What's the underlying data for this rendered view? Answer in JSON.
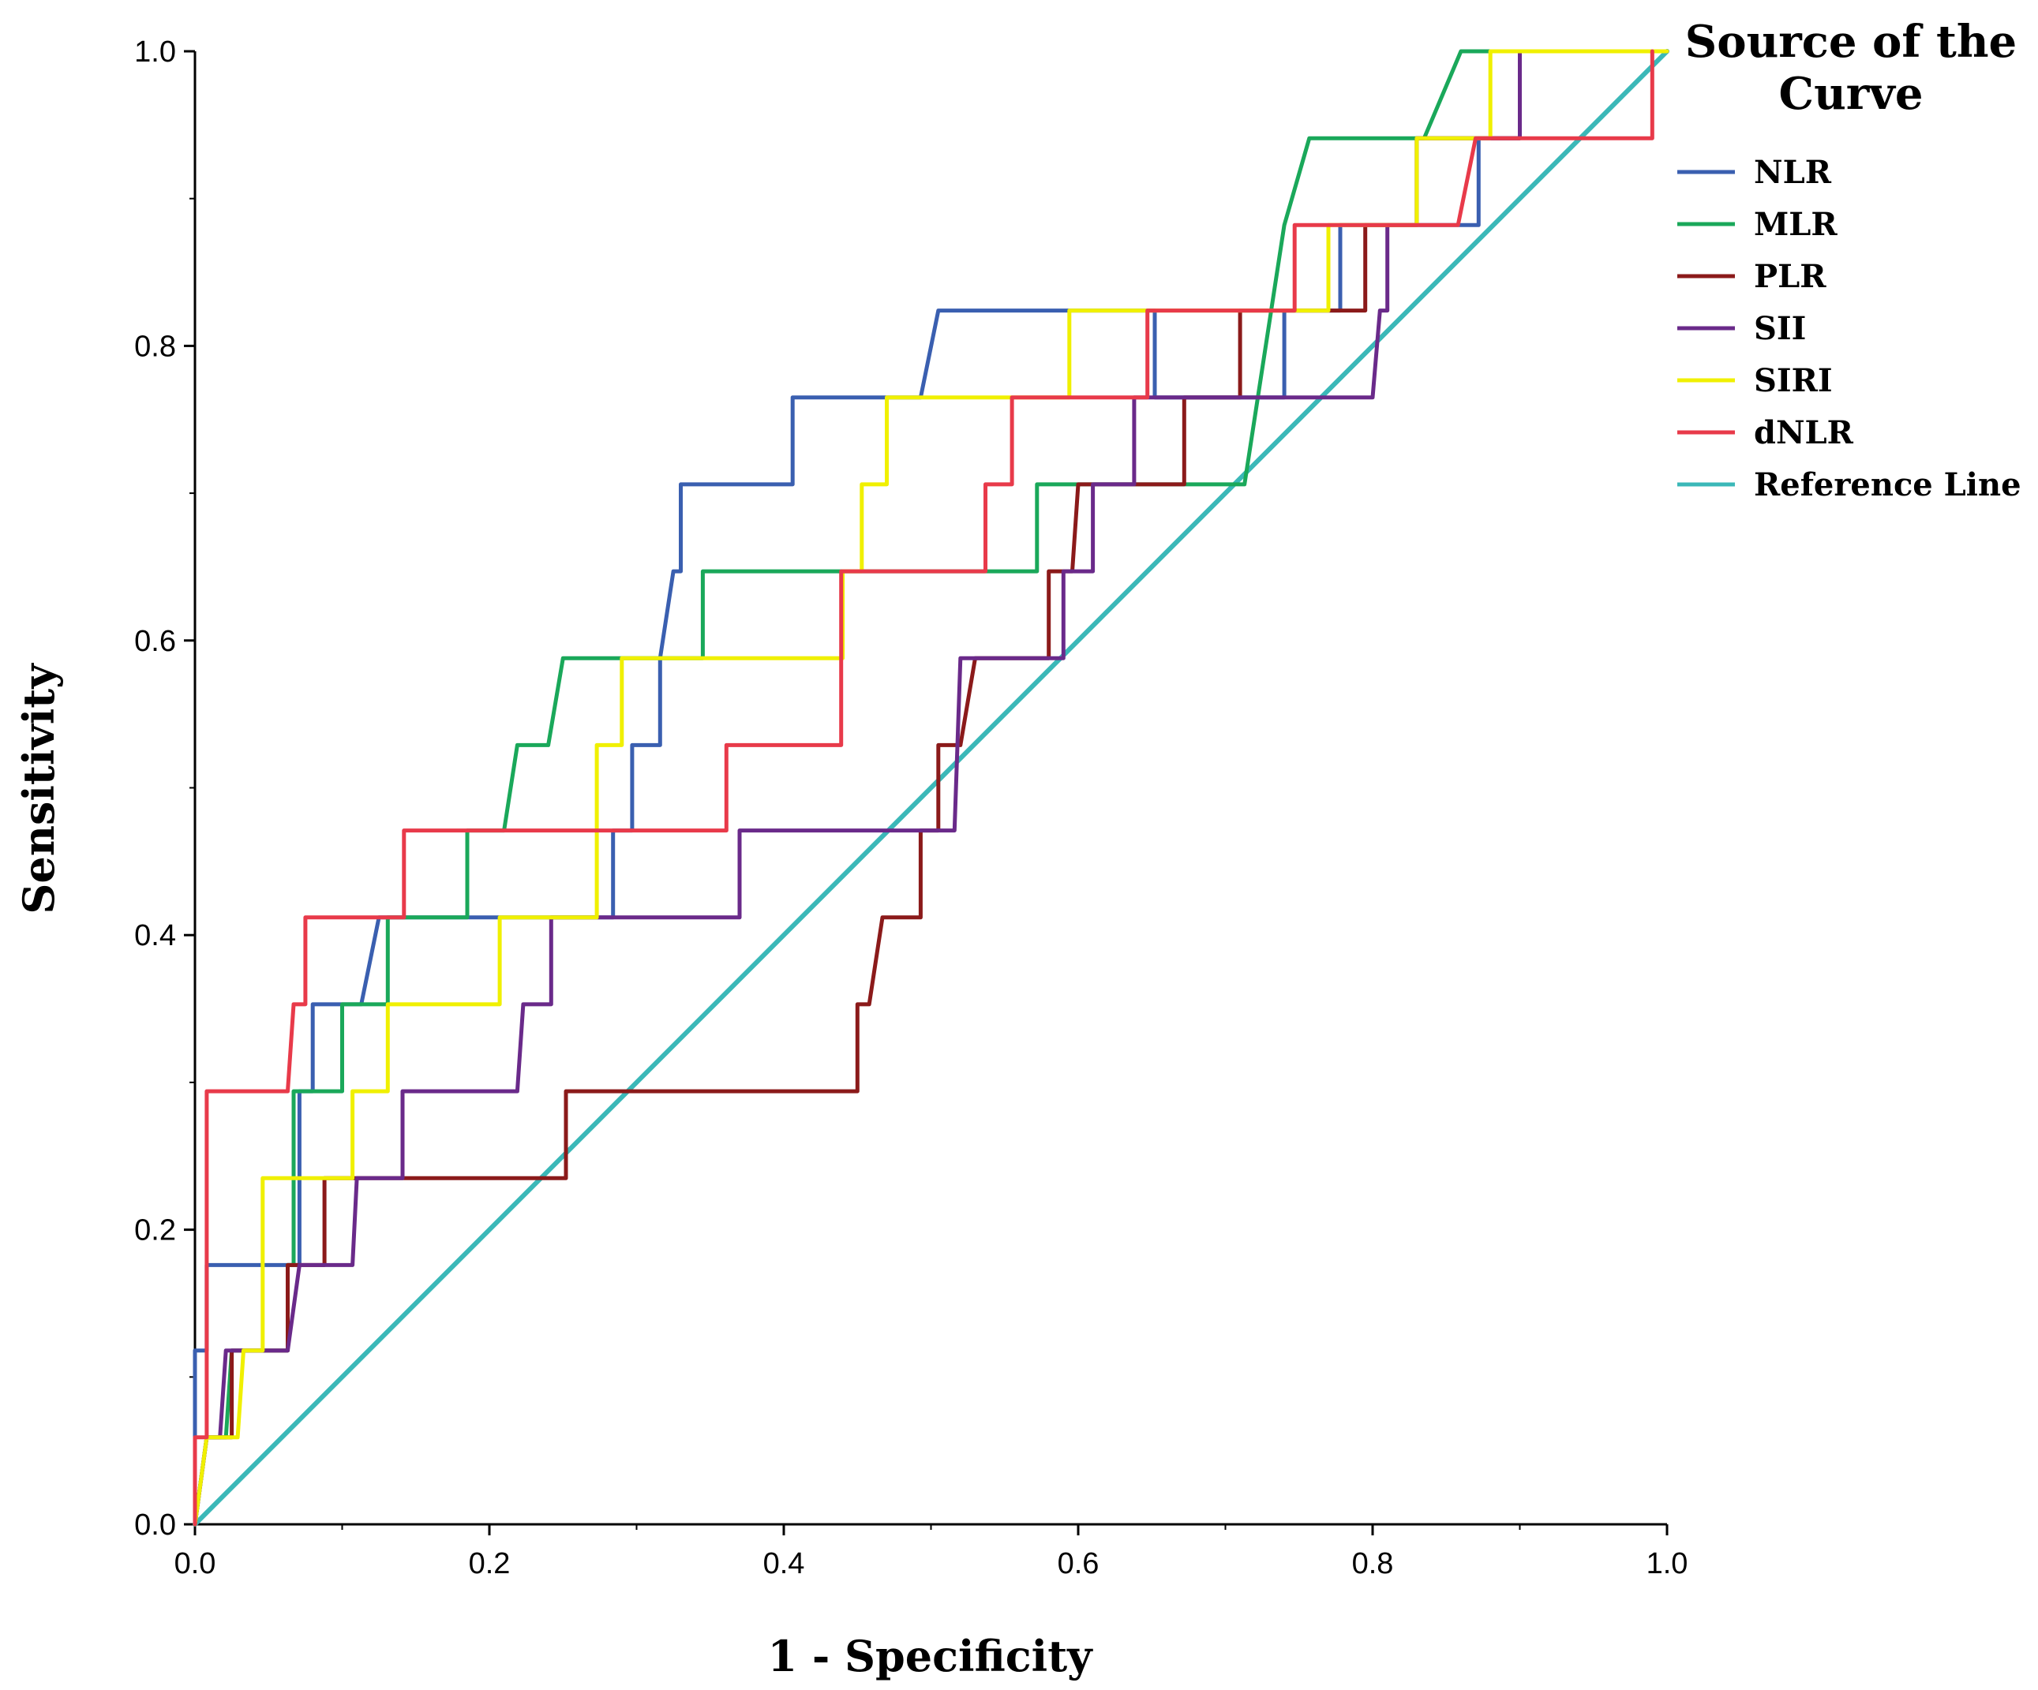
{
  "chart_data": {
    "type": "line",
    "title": "",
    "xlabel": "1 - Specificity",
    "ylabel": "Sensitivity",
    "xlim": [
      0,
      1
    ],
    "ylim": [
      0,
      1
    ],
    "x_ticks": [
      "0.0",
      "0.2",
      "0.4",
      "0.6",
      "0.8",
      "1.0"
    ],
    "y_ticks": [
      "0.0",
      "0.2",
      "0.4",
      "0.6",
      "0.8",
      "1.0"
    ],
    "legend_title": "Source of the Curve",
    "legend_title_lines": [
      "Source of the",
      "Curve"
    ],
    "legend_position": "top-right, outside plot",
    "series": [
      {
        "name": "NLR",
        "color": "#3a5fb0",
        "points": [
          [
            0,
            0
          ],
          [
            0,
            0.118
          ],
          [
            0.008,
            0.118
          ],
          [
            0.008,
            0.176
          ],
          [
            0.071,
            0.176
          ],
          [
            0.071,
            0.294
          ],
          [
            0.08,
            0.294
          ],
          [
            0.08,
            0.353
          ],
          [
            0.113,
            0.353
          ],
          [
            0.125,
            0.412
          ],
          [
            0.284,
            0.412
          ],
          [
            0.284,
            0.471
          ],
          [
            0.297,
            0.471
          ],
          [
            0.297,
            0.529
          ],
          [
            0.316,
            0.529
          ],
          [
            0.316,
            0.588
          ],
          [
            0.325,
            0.647
          ],
          [
            0.33,
            0.647
          ],
          [
            0.33,
            0.706
          ],
          [
            0.406,
            0.706
          ],
          [
            0.406,
            0.765
          ],
          [
            0.493,
            0.765
          ],
          [
            0.505,
            0.824
          ],
          [
            0.652,
            0.824
          ],
          [
            0.652,
            0.765
          ],
          [
            0.74,
            0.765
          ],
          [
            0.74,
            0.824
          ],
          [
            0.778,
            0.824
          ],
          [
            0.778,
            0.882
          ],
          [
            0.872,
            0.882
          ],
          [
            0.872,
            0.941
          ],
          [
            0.9,
            0.941
          ],
          [
            0.9,
            1
          ],
          [
            1,
            1
          ]
        ]
      },
      {
        "name": "MLR",
        "color": "#1aa85a",
        "points": [
          [
            0,
            0
          ],
          [
            0.008,
            0.059
          ],
          [
            0.021,
            0.059
          ],
          [
            0.025,
            0.118
          ],
          [
            0.063,
            0.118
          ],
          [
            0.063,
            0.176
          ],
          [
            0.067,
            0.176
          ],
          [
            0.067,
            0.294
          ],
          [
            0.1,
            0.294
          ],
          [
            0.1,
            0.353
          ],
          [
            0.131,
            0.353
          ],
          [
            0.131,
            0.412
          ],
          [
            0.185,
            0.412
          ],
          [
            0.185,
            0.471
          ],
          [
            0.21,
            0.471
          ],
          [
            0.219,
            0.529
          ],
          [
            0.24,
            0.529
          ],
          [
            0.25,
            0.588
          ],
          [
            0.345,
            0.588
          ],
          [
            0.345,
            0.647
          ],
          [
            0.572,
            0.647
          ],
          [
            0.572,
            0.706
          ],
          [
            0.713,
            0.706
          ],
          [
            0.74,
            0.882
          ],
          [
            0.757,
            0.941
          ],
          [
            0.835,
            0.941
          ],
          [
            0.86,
            1
          ],
          [
            1,
            1
          ]
        ]
      },
      {
        "name": "PLR",
        "color": "#8b1a1a",
        "points": [
          [
            0,
            0
          ],
          [
            0.008,
            0.059
          ],
          [
            0.025,
            0.059
          ],
          [
            0.025,
            0.118
          ],
          [
            0.063,
            0.118
          ],
          [
            0.063,
            0.176
          ],
          [
            0.088,
            0.176
          ],
          [
            0.088,
            0.235
          ],
          [
            0.252,
            0.235
          ],
          [
            0.252,
            0.294
          ],
          [
            0.45,
            0.294
          ],
          [
            0.45,
            0.353
          ],
          [
            0.458,
            0.353
          ],
          [
            0.467,
            0.412
          ],
          [
            0.493,
            0.412
          ],
          [
            0.493,
            0.471
          ],
          [
            0.505,
            0.471
          ],
          [
            0.505,
            0.529
          ],
          [
            0.52,
            0.529
          ],
          [
            0.53,
            0.588
          ],
          [
            0.58,
            0.588
          ],
          [
            0.58,
            0.647
          ],
          [
            0.596,
            0.647
          ],
          [
            0.6,
            0.706
          ],
          [
            0.672,
            0.706
          ],
          [
            0.672,
            0.765
          ],
          [
            0.71,
            0.765
          ],
          [
            0.71,
            0.824
          ],
          [
            0.795,
            0.824
          ],
          [
            0.795,
            0.882
          ],
          [
            0.83,
            0.882
          ],
          [
            0.83,
            0.941
          ],
          [
            0.9,
            0.941
          ],
          [
            0.9,
            1
          ],
          [
            1,
            1
          ]
        ]
      },
      {
        "name": "SII",
        "color": "#6a2a8a",
        "points": [
          [
            0,
            0
          ],
          [
            0.008,
            0.059
          ],
          [
            0.017,
            0.059
          ],
          [
            0.021,
            0.118
          ],
          [
            0.063,
            0.118
          ],
          [
            0.071,
            0.176
          ],
          [
            0.107,
            0.176
          ],
          [
            0.11,
            0.235
          ],
          [
            0.141,
            0.235
          ],
          [
            0.141,
            0.294
          ],
          [
            0.219,
            0.294
          ],
          [
            0.223,
            0.353
          ],
          [
            0.242,
            0.353
          ],
          [
            0.242,
            0.412
          ],
          [
            0.37,
            0.412
          ],
          [
            0.37,
            0.471
          ],
          [
            0.516,
            0.471
          ],
          [
            0.52,
            0.588
          ],
          [
            0.59,
            0.588
          ],
          [
            0.59,
            0.647
          ],
          [
            0.61,
            0.647
          ],
          [
            0.61,
            0.706
          ],
          [
            0.638,
            0.706
          ],
          [
            0.638,
            0.765
          ],
          [
            0.8,
            0.765
          ],
          [
            0.805,
            0.824
          ],
          [
            0.81,
            0.824
          ],
          [
            0.81,
            0.882
          ],
          [
            0.83,
            0.882
          ],
          [
            0.83,
            0.941
          ],
          [
            0.9,
            0.941
          ],
          [
            0.9,
            1
          ],
          [
            1,
            1
          ]
        ]
      },
      {
        "name": "SIRI",
        "color": "#f0f000",
        "points": [
          [
            0,
            0
          ],
          [
            0.008,
            0.059
          ],
          [
            0.029,
            0.059
          ],
          [
            0.033,
            0.118
          ],
          [
            0.046,
            0.118
          ],
          [
            0.046,
            0.235
          ],
          [
            0.107,
            0.235
          ],
          [
            0.107,
            0.294
          ],
          [
            0.131,
            0.294
          ],
          [
            0.131,
            0.353
          ],
          [
            0.207,
            0.353
          ],
          [
            0.207,
            0.412
          ],
          [
            0.273,
            0.412
          ],
          [
            0.273,
            0.529
          ],
          [
            0.29,
            0.529
          ],
          [
            0.29,
            0.588
          ],
          [
            0.44,
            0.588
          ],
          [
            0.44,
            0.647
          ],
          [
            0.453,
            0.647
          ],
          [
            0.453,
            0.706
          ],
          [
            0.47,
            0.706
          ],
          [
            0.47,
            0.765
          ],
          [
            0.594,
            0.765
          ],
          [
            0.594,
            0.824
          ],
          [
            0.77,
            0.824
          ],
          [
            0.77,
            0.882
          ],
          [
            0.83,
            0.882
          ],
          [
            0.83,
            0.941
          ],
          [
            0.88,
            0.941
          ],
          [
            0.88,
            1
          ],
          [
            1,
            1
          ]
        ]
      },
      {
        "name": "dNLR",
        "color": "#e83a4a",
        "points": [
          [
            0,
            0
          ],
          [
            0,
            0.059
          ],
          [
            0.008,
            0.059
          ],
          [
            0.008,
            0.294
          ],
          [
            0.063,
            0.294
          ],
          [
            0.067,
            0.353
          ],
          [
            0.075,
            0.353
          ],
          [
            0.075,
            0.412
          ],
          [
            0.142,
            0.412
          ],
          [
            0.142,
            0.471
          ],
          [
            0.361,
            0.471
          ],
          [
            0.361,
            0.529
          ],
          [
            0.439,
            0.529
          ],
          [
            0.439,
            0.647
          ],
          [
            0.537,
            0.647
          ],
          [
            0.537,
            0.706
          ],
          [
            0.555,
            0.706
          ],
          [
            0.555,
            0.765
          ],
          [
            0.647,
            0.765
          ],
          [
            0.647,
            0.824
          ],
          [
            0.747,
            0.824
          ],
          [
            0.747,
            0.882
          ],
          [
            0.858,
            0.882
          ],
          [
            0.87,
            0.941
          ],
          [
            0.99,
            0.941
          ],
          [
            0.99,
            1
          ]
        ]
      },
      {
        "name": "Reference Line",
        "color": "#3bb8b8",
        "points": [
          [
            0,
            0
          ],
          [
            1,
            1
          ]
        ]
      }
    ]
  }
}
